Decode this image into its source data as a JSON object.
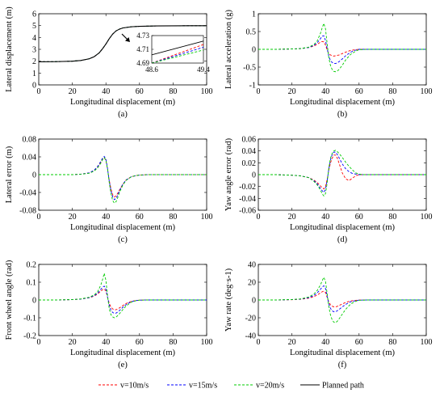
{
  "chart_data": [
    {
      "id": "a",
      "type": "line",
      "panel_label": "(a)",
      "xlabel": "Longitudinal displacement (m)",
      "ylabel": "Lateral displacement (m)",
      "xlim": [
        0,
        100
      ],
      "ylim": [
        0,
        6
      ],
      "xticks": [
        "0",
        "20",
        "40",
        "60",
        "80",
        "100"
      ],
      "yticks": [
        "0",
        "1",
        "2",
        "3",
        "4",
        "5",
        "6"
      ],
      "x": [
        0,
        10,
        20,
        25,
        30,
        33,
        36,
        38,
        40,
        42,
        44,
        46,
        48,
        50,
        55,
        60,
        70,
        80,
        90,
        100
      ],
      "series": [
        {
          "key": "v10",
          "values": [
            1.95,
            1.96,
            2.0,
            2.06,
            2.2,
            2.38,
            2.7,
            3.05,
            3.45,
            3.9,
            4.28,
            4.55,
            4.7,
            4.8,
            4.9,
            4.94,
            4.97,
            4.98,
            4.99,
            4.99
          ]
        },
        {
          "key": "v15",
          "values": [
            1.95,
            1.96,
            2.0,
            2.06,
            2.2,
            2.38,
            2.7,
            3.05,
            3.45,
            3.9,
            4.28,
            4.55,
            4.7,
            4.8,
            4.9,
            4.94,
            4.97,
            4.98,
            4.99,
            4.99
          ]
        },
        {
          "key": "v20",
          "values": [
            1.95,
            1.96,
            2.0,
            2.06,
            2.2,
            2.38,
            2.7,
            3.05,
            3.45,
            3.9,
            4.28,
            4.55,
            4.7,
            4.8,
            4.9,
            4.94,
            4.97,
            4.98,
            4.99,
            4.99
          ]
        },
        {
          "key": "planned",
          "values": [
            1.95,
            1.96,
            2.0,
            2.06,
            2.2,
            2.38,
            2.7,
            3.05,
            3.45,
            3.9,
            4.28,
            4.55,
            4.7,
            4.8,
            4.9,
            4.94,
            4.97,
            4.98,
            4.99,
            4.99
          ]
        }
      ],
      "inset": {
        "xlim": [
          48.6,
          49.4
        ],
        "ylim": [
          4.69,
          4.73
        ],
        "xticks": [
          "48.6",
          "49.4"
        ],
        "yticks": [
          "4.69",
          "4.71",
          "4.73"
        ],
        "x": [
          48.6,
          49.4
        ],
        "series": [
          {
            "key": "planned",
            "values": [
              4.702,
              4.722
            ]
          },
          {
            "key": "v10",
            "values": [
              4.69,
              4.717
            ]
          },
          {
            "key": "v15",
            "values": [
              4.69,
              4.713
            ]
          },
          {
            "key": "v20",
            "values": [
              4.69,
              4.709
            ]
          }
        ]
      }
    },
    {
      "id": "b",
      "type": "line",
      "panel_label": "(b)",
      "xlabel": "Longitudinal displacement (m)",
      "ylabel": "Lateral acceleration (g)",
      "xlim": [
        0,
        100
      ],
      "ylim": [
        -1,
        1
      ],
      "xticks": [
        "0",
        "20",
        "40",
        "60",
        "80",
        "100"
      ],
      "yticks": [
        "-1",
        "-0.5",
        "0",
        "0.5",
        "1"
      ],
      "x": [
        0,
        10,
        20,
        25,
        30,
        33,
        35,
        37,
        38,
        39,
        40,
        41,
        42,
        43,
        44,
        45,
        46,
        47,
        48,
        50,
        52,
        55,
        58,
        60,
        65,
        70,
        80,
        100
      ],
      "series": [
        {
          "key": "v10",
          "values": [
            0,
            0,
            0.01,
            0.02,
            0.05,
            0.09,
            0.14,
            0.2,
            0.22,
            0.21,
            0.12,
            -0.02,
            -0.12,
            -0.16,
            -0.18,
            -0.19,
            -0.18,
            -0.17,
            -0.16,
            -0.12,
            -0.08,
            -0.03,
            -0.01,
            0,
            0,
            0,
            0,
            0
          ]
        },
        {
          "key": "v15",
          "values": [
            0,
            0,
            0.01,
            0.02,
            0.05,
            0.11,
            0.18,
            0.3,
            0.37,
            0.38,
            0.25,
            0.02,
            -0.2,
            -0.32,
            -0.37,
            -0.4,
            -0.4,
            -0.38,
            -0.35,
            -0.27,
            -0.18,
            -0.08,
            -0.02,
            0,
            0,
            0,
            0,
            0
          ]
        },
        {
          "key": "v20",
          "values": [
            0,
            0,
            0.01,
            0.02,
            0.06,
            0.13,
            0.23,
            0.45,
            0.6,
            0.73,
            0.58,
            0.15,
            -0.25,
            -0.46,
            -0.57,
            -0.62,
            -0.63,
            -0.61,
            -0.57,
            -0.45,
            -0.3,
            -0.14,
            -0.05,
            -0.01,
            0,
            0,
            0,
            0
          ]
        }
      ]
    },
    {
      "id": "c",
      "type": "line",
      "panel_label": "(c)",
      "xlabel": "Longitudinal displacement (m)",
      "ylabel": "Lateral error (m)",
      "xlim": [
        0,
        100
      ],
      "ylim": [
        -0.08,
        0.08
      ],
      "xticks": [
        "0",
        "20",
        "40",
        "60",
        "80",
        "100"
      ],
      "yticks": [
        "-0.08",
        "-0.04",
        "0",
        "0.04",
        "0.08"
      ],
      "x": [
        0,
        10,
        20,
        25,
        30,
        33,
        35,
        37,
        38,
        39,
        40,
        41,
        42,
        43,
        44,
        45,
        46,
        47,
        48,
        50,
        52,
        55,
        58,
        60,
        65,
        70,
        80,
        100
      ],
      "series": [
        {
          "key": "v10",
          "values": [
            0,
            0,
            0,
            0.001,
            0.004,
            0.009,
            0.017,
            0.028,
            0.035,
            0.038,
            0.032,
            0.012,
            -0.013,
            -0.032,
            -0.045,
            -0.05,
            -0.048,
            -0.042,
            -0.035,
            -0.022,
            -0.012,
            -0.005,
            -0.002,
            -0.001,
            0,
            0,
            0,
            0
          ]
        },
        {
          "key": "v15",
          "values": [
            0,
            0,
            0,
            0.001,
            0.004,
            0.01,
            0.018,
            0.03,
            0.037,
            0.041,
            0.035,
            0.013,
            -0.015,
            -0.036,
            -0.05,
            -0.056,
            -0.054,
            -0.046,
            -0.037,
            -0.022,
            -0.012,
            -0.005,
            -0.002,
            -0.001,
            0,
            0,
            0,
            0
          ]
        },
        {
          "key": "v20",
          "values": [
            0,
            0,
            0,
            0.001,
            0.003,
            0.008,
            0.015,
            0.026,
            0.034,
            0.038,
            0.033,
            0.012,
            -0.018,
            -0.042,
            -0.058,
            -0.064,
            -0.061,
            -0.052,
            -0.041,
            -0.024,
            -0.013,
            -0.005,
            -0.002,
            -0.001,
            0,
            0,
            0,
            0
          ]
        }
      ]
    },
    {
      "id": "d",
      "type": "line",
      "panel_label": "(d)",
      "xlabel": "Longitudinal displacement (m)",
      "ylabel": "Yaw angle error (rad)",
      "xlim": [
        0,
        100
      ],
      "ylim": [
        -0.06,
        0.06
      ],
      "xticks": [
        "0",
        "20",
        "40",
        "60",
        "80",
        "100"
      ],
      "yticks": [
        "-0.06",
        "-0.04",
        "-0.02",
        "0",
        "0.02",
        "0.04",
        "0.06"
      ],
      "x": [
        0,
        10,
        20,
        25,
        30,
        33,
        35,
        37,
        38,
        39,
        40,
        41,
        42,
        43,
        44,
        45,
        46,
        47,
        48,
        50,
        52,
        54,
        56,
        58,
        60,
        62,
        65,
        70,
        80,
        100
      ],
      "series": [
        {
          "key": "v10",
          "values": [
            0,
            0,
            -0.001,
            -0.002,
            -0.005,
            -0.009,
            -0.013,
            -0.019,
            -0.022,
            -0.024,
            -0.02,
            -0.008,
            0.008,
            0.02,
            0.028,
            0.033,
            0.033,
            0.028,
            0.02,
            0.003,
            -0.007,
            -0.01,
            -0.006,
            -0.002,
            0,
            0,
            0,
            0,
            0,
            0
          ]
        },
        {
          "key": "v15",
          "values": [
            0,
            0,
            -0.001,
            -0.002,
            -0.005,
            -0.01,
            -0.015,
            -0.023,
            -0.027,
            -0.03,
            -0.025,
            -0.01,
            0.01,
            0.025,
            0.034,
            0.038,
            0.038,
            0.034,
            0.029,
            0.018,
            0.01,
            0.005,
            0.002,
            0.001,
            0,
            0,
            0,
            0,
            0,
            0
          ]
        },
        {
          "key": "v20",
          "values": [
            0,
            0,
            -0.001,
            -0.002,
            -0.005,
            -0.011,
            -0.017,
            -0.026,
            -0.032,
            -0.036,
            -0.032,
            -0.014,
            0.012,
            0.028,
            0.036,
            0.04,
            0.041,
            0.039,
            0.036,
            0.029,
            0.021,
            0.014,
            0.008,
            0.003,
            0.001,
            0,
            0,
            0,
            0,
            0
          ]
        }
      ]
    },
    {
      "id": "e",
      "type": "line",
      "panel_label": "(e)",
      "xlabel": "Longitudinal displacement (m)",
      "ylabel": "Front wheel angle (rad)",
      "xlim": [
        0,
        100
      ],
      "ylim": [
        -0.2,
        0.2
      ],
      "xticks": [
        "0",
        "20",
        "40",
        "60",
        "80",
        "100"
      ],
      "yticks": [
        "-0.2",
        "-0.1",
        "0",
        "0.1",
        "0.2"
      ],
      "x": [
        0,
        10,
        20,
        25,
        30,
        33,
        35,
        37,
        38,
        39,
        40,
        41,
        42,
        43,
        44,
        45,
        46,
        47,
        48,
        50,
        52,
        55,
        58,
        60,
        65,
        70,
        80,
        100
      ],
      "series": [
        {
          "key": "v10",
          "values": [
            0,
            0,
            0.002,
            0.005,
            0.012,
            0.022,
            0.033,
            0.05,
            0.058,
            0.062,
            0.05,
            0.015,
            -0.02,
            -0.04,
            -0.05,
            -0.055,
            -0.055,
            -0.05,
            -0.045,
            -0.032,
            -0.02,
            -0.008,
            -0.003,
            -0.001,
            0,
            0,
            0,
            0
          ]
        },
        {
          "key": "v15",
          "values": [
            0,
            0,
            0.002,
            0.005,
            0.013,
            0.024,
            0.037,
            0.06,
            0.072,
            0.078,
            0.06,
            0.015,
            -0.03,
            -0.058,
            -0.07,
            -0.075,
            -0.074,
            -0.068,
            -0.06,
            -0.042,
            -0.026,
            -0.01,
            -0.003,
            -0.001,
            0,
            0,
            0,
            0
          ]
        },
        {
          "key": "v20",
          "values": [
            0,
            0,
            0.002,
            0.006,
            0.015,
            0.028,
            0.045,
            0.085,
            0.115,
            0.15,
            0.11,
            0.02,
            -0.05,
            -0.083,
            -0.095,
            -0.1,
            -0.097,
            -0.088,
            -0.078,
            -0.055,
            -0.034,
            -0.013,
            -0.004,
            -0.001,
            0,
            0,
            0,
            0
          ]
        }
      ]
    },
    {
      "id": "f",
      "type": "line",
      "panel_label": "(f)",
      "xlabel": "Longitudinal displacement (m)",
      "ylabel": "Yaw rate (deg·s-1)",
      "xlim": [
        0,
        100
      ],
      "ylim": [
        -40,
        40
      ],
      "xticks": [
        "0",
        "20",
        "40",
        "60",
        "80",
        "100"
      ],
      "yticks": [
        "-40",
        "-20",
        "0",
        "20",
        "40"
      ],
      "x": [
        0,
        10,
        20,
        25,
        30,
        33,
        35,
        37,
        38,
        39,
        40,
        41,
        42,
        43,
        44,
        45,
        46,
        47,
        48,
        50,
        52,
        55,
        58,
        60,
        65,
        70,
        80,
        100
      ],
      "series": [
        {
          "key": "v10",
          "values": [
            0,
            0,
            0.3,
            0.8,
            2,
            3.7,
            5.5,
            8,
            9.2,
            10,
            8.5,
            3,
            -2.5,
            -5.5,
            -7,
            -7.8,
            -7.8,
            -7.2,
            -6.3,
            -4.5,
            -2.8,
            -1.1,
            -0.4,
            -0.1,
            0,
            0,
            0,
            0
          ]
        },
        {
          "key": "v15",
          "values": [
            0,
            0,
            0.4,
            1,
            2.6,
            5,
            7.8,
            12,
            14.5,
            16,
            13,
            4,
            -4.5,
            -9.5,
            -12.2,
            -13.3,
            -13.2,
            -12.2,
            -10.8,
            -7.8,
            -5,
            -2,
            -0.7,
            -0.2,
            0,
            0,
            0,
            0
          ]
        },
        {
          "key": "v20",
          "values": [
            0,
            0,
            0.5,
            1.2,
            3.3,
            6.5,
            10.5,
            17,
            21.5,
            25.5,
            21,
            7,
            -8,
            -17,
            -22.5,
            -25,
            -25.5,
            -24,
            -21.5,
            -16,
            -10.5,
            -4.5,
            -1.5,
            -0.4,
            0,
            0,
            0,
            0
          ]
        }
      ]
    }
  ],
  "legend": {
    "placement": "bottom",
    "entries": [
      {
        "key": "v10",
        "label": "v=10m/s",
        "color": "#ff0000",
        "dash": "dashed"
      },
      {
        "key": "v15",
        "label": "v=15m/s",
        "color": "#0000ff",
        "dash": "dashed"
      },
      {
        "key": "v20",
        "label": "v=20m/s",
        "color": "#00cc00",
        "dash": "dashed"
      },
      {
        "key": "planned",
        "label": "Planned path",
        "color": "#000000",
        "dash": "solid"
      }
    ]
  }
}
